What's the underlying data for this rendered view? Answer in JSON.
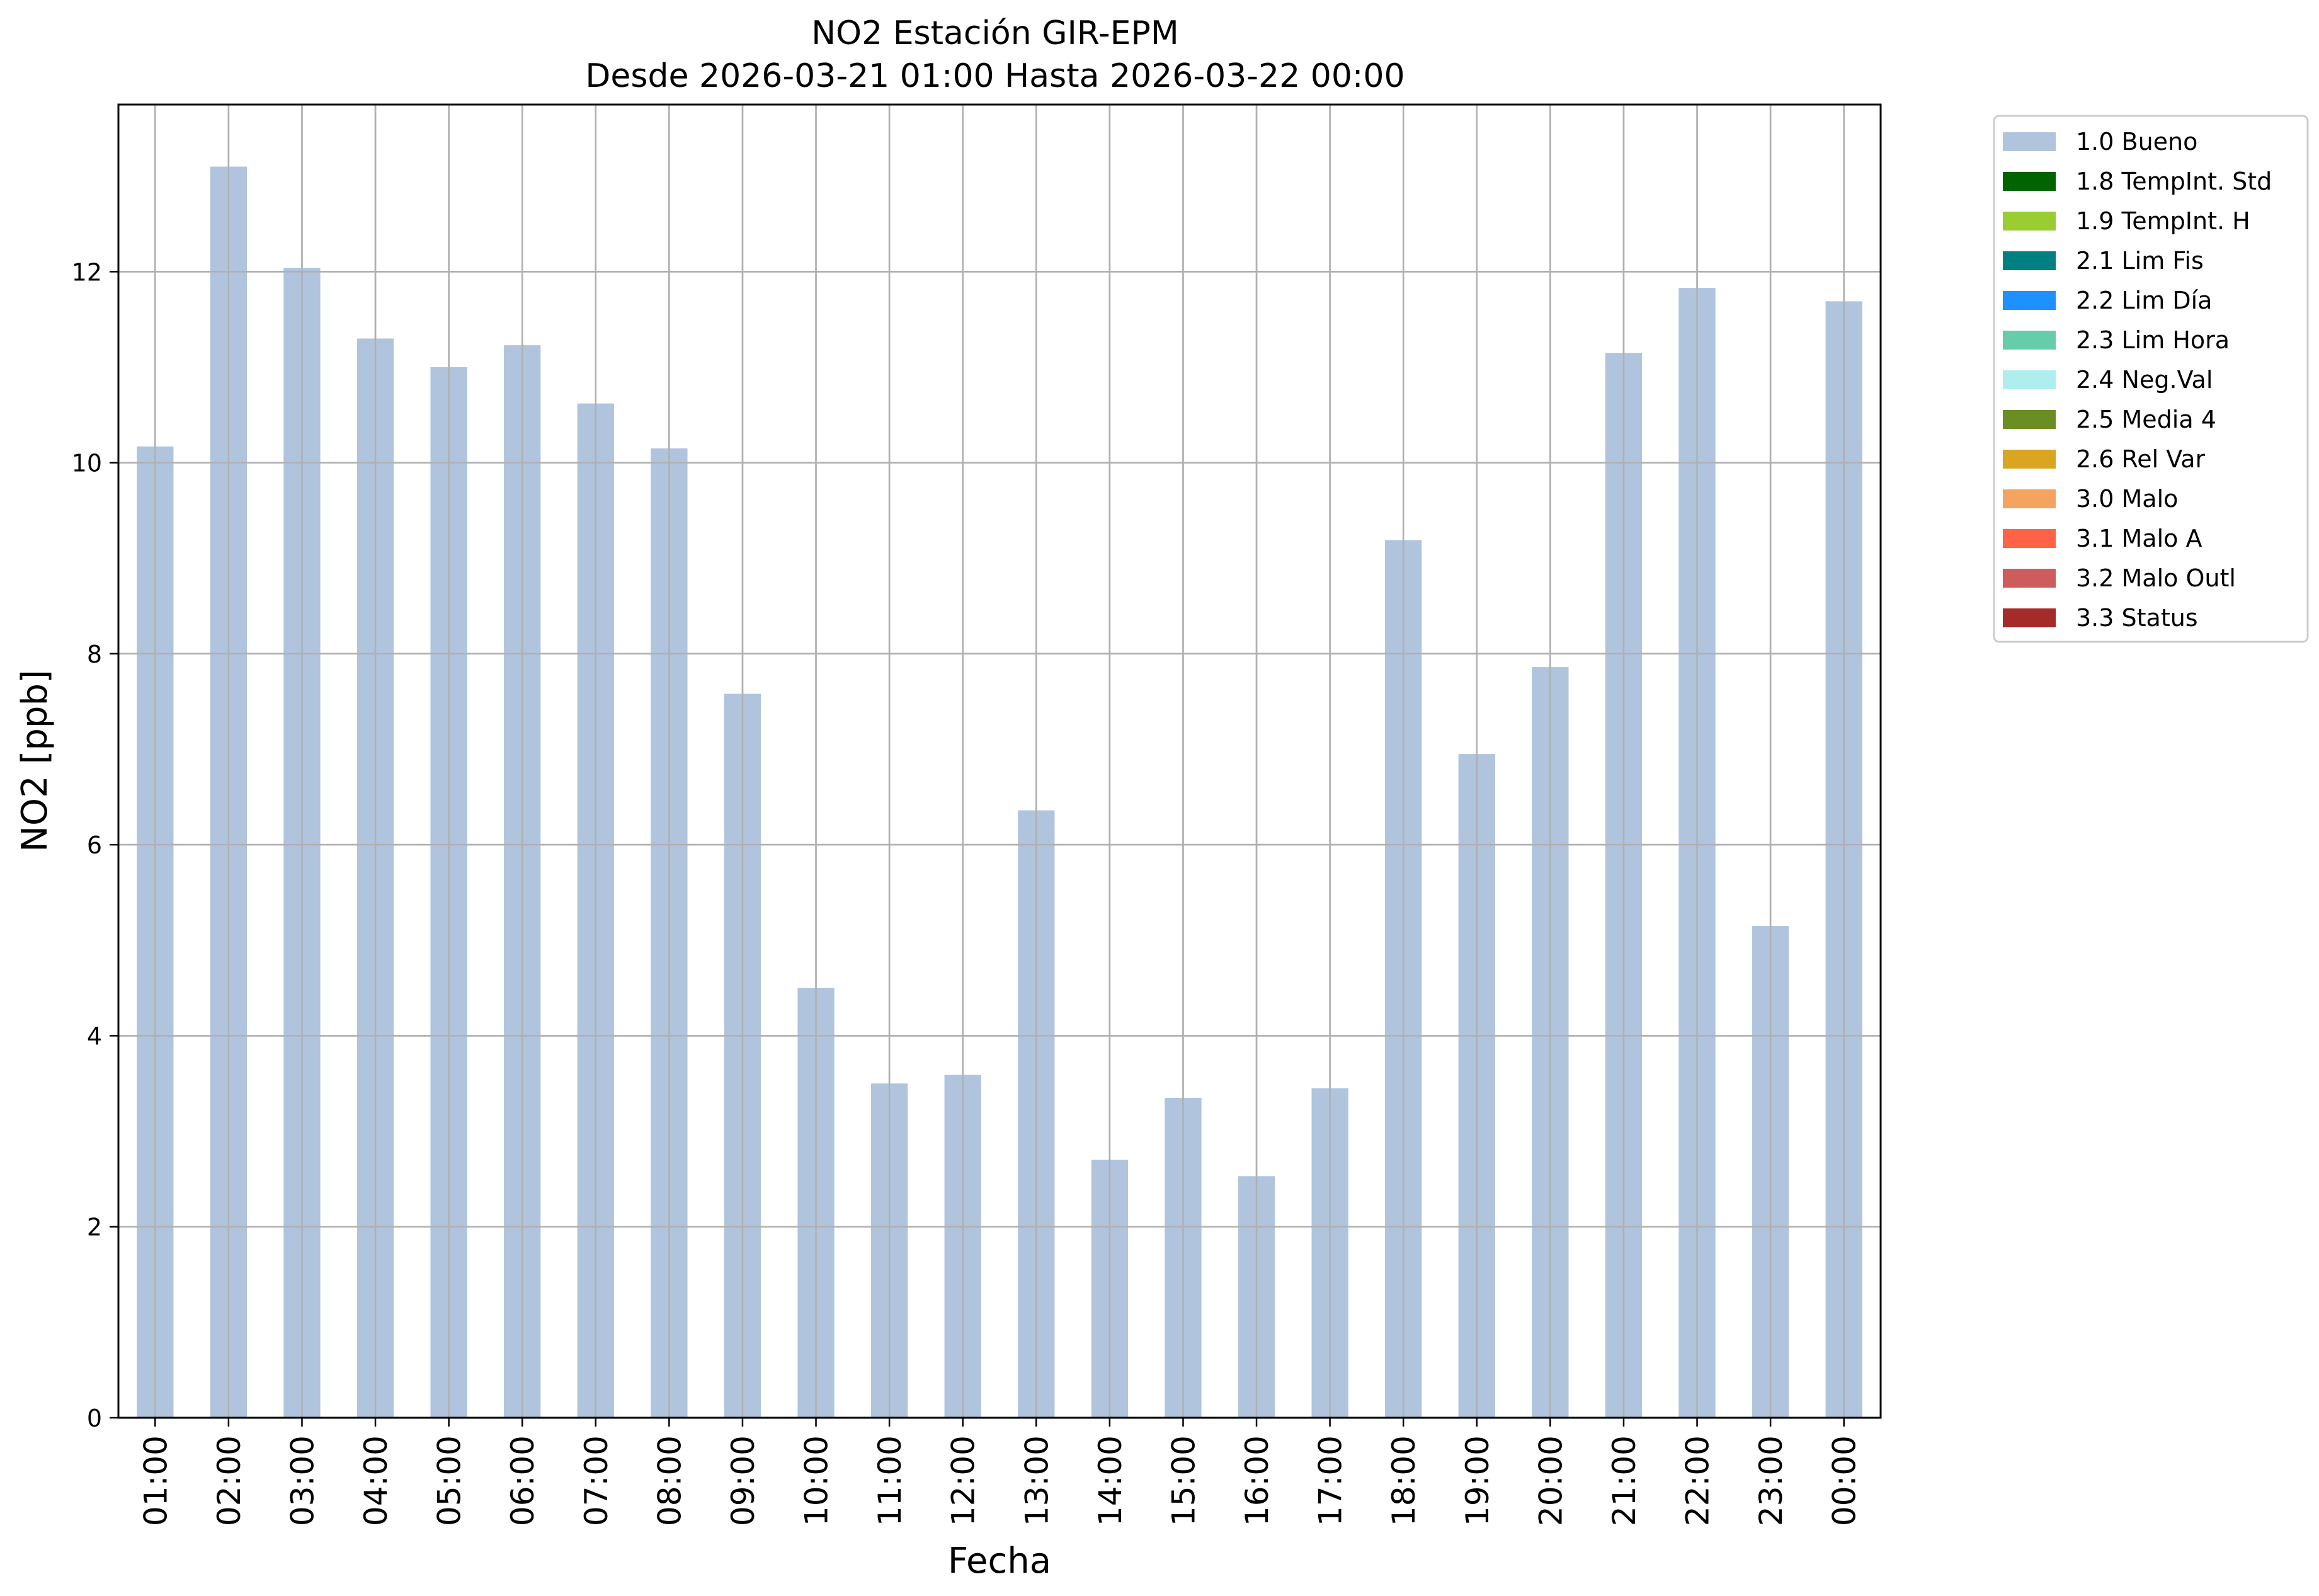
{
  "chart_data": {
    "type": "bar",
    "title": "NO2 Estación GIR-EPM",
    "subtitle": "Desde 2026-03-21 01:00 Hasta 2026-03-22 00:00",
    "xlabel": "Fecha",
    "ylabel": "NO2 [ppb]",
    "ylim": [
      0,
      13.75
    ],
    "yticks": [
      0,
      2,
      4,
      6,
      8,
      10,
      12
    ],
    "grid": true,
    "legend_position": "outside-top-right",
    "categories": [
      "01:00",
      "02:00",
      "03:00",
      "04:00",
      "05:00",
      "06:00",
      "07:00",
      "08:00",
      "09:00",
      "10:00",
      "11:00",
      "12:00",
      "13:00",
      "14:00",
      "15:00",
      "16:00",
      "17:00",
      "18:00",
      "19:00",
      "20:00",
      "21:00",
      "22:00",
      "23:00",
      "00:00"
    ],
    "series": [
      {
        "name": "1.0 Bueno",
        "color": "#b0c4de",
        "values": [
          10.17,
          13.1,
          12.04,
          11.3,
          11.0,
          11.23,
          10.62,
          10.15,
          7.58,
          4.5,
          3.5,
          3.59,
          6.36,
          2.7,
          3.35,
          2.53,
          3.45,
          9.19,
          6.95,
          7.86,
          11.15,
          11.83,
          5.15,
          11.69
        ]
      }
    ],
    "legend": [
      {
        "label": "1.0 Bueno",
        "color": "#b0c4de"
      },
      {
        "label": "1.8 TempInt. Std",
        "color": "#006400"
      },
      {
        "label": "1.9 TempInt. H",
        "color": "#9acd32"
      },
      {
        "label": "2.1 Lim Fis",
        "color": "#008080"
      },
      {
        "label": "2.2 Lim Día",
        "color": "#1e90ff"
      },
      {
        "label": "2.3 Lim Hora",
        "color": "#66cdaa"
      },
      {
        "label": "2.4 Neg.Val",
        "color": "#afeeee"
      },
      {
        "label": "2.5 Media 4",
        "color": "#6b8e23"
      },
      {
        "label": "2.6 Rel Var",
        "color": "#daa520"
      },
      {
        "label": "3.0 Malo",
        "color": "#f4a460"
      },
      {
        "label": "3.1 Malo A",
        "color": "#ff6347"
      },
      {
        "label": "3.2 Malo Outl",
        "color": "#cd5c5c"
      },
      {
        "label": "3.3 Status",
        "color": "#a52a2a"
      }
    ]
  }
}
